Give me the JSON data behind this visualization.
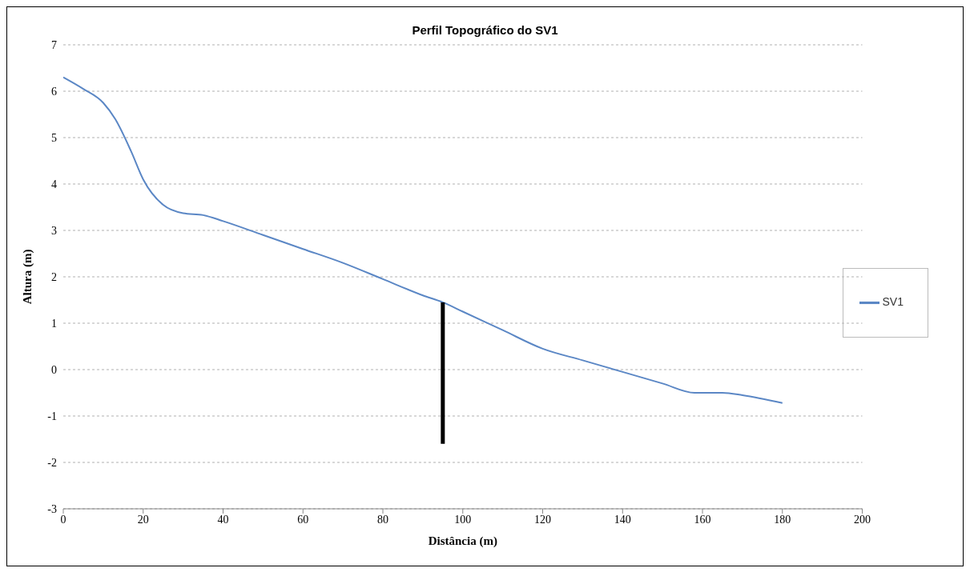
{
  "chart_data": {
    "type": "line",
    "title": "Perfil Topográfico do SV1",
    "xlabel": "Distância (m)",
    "ylabel": "Altura (m)",
    "series": [
      {
        "name": "SV1",
        "color": "#5b87c5",
        "x": [
          0,
          5,
          10,
          13,
          17,
          20,
          25,
          30,
          35,
          40,
          50,
          60,
          70,
          80,
          90,
          95,
          100,
          110,
          120,
          130,
          140,
          150,
          158,
          165,
          170,
          180
        ],
        "values": [
          6.3,
          6.05,
          5.75,
          5.4,
          4.7,
          4.1,
          3.55,
          3.37,
          3.33,
          3.2,
          2.9,
          2.6,
          2.3,
          1.95,
          1.6,
          1.45,
          1.25,
          0.85,
          0.45,
          0.2,
          -0.05,
          -0.3,
          -0.5,
          -0.5,
          -0.55,
          -0.72
        ]
      },
      {
        "color": "#000000",
        "x": [
          95,
          95
        ],
        "values": [
          1.45,
          -1.6
        ]
      }
    ],
    "xlim": [
      0,
      200
    ],
    "xticks": [
      0,
      20,
      40,
      60,
      80,
      100,
      120,
      140,
      160,
      180,
      200
    ],
    "ylim": [
      -3,
      7
    ],
    "yticks": [
      -3,
      -2,
      -1,
      0,
      1,
      2,
      3,
      4,
      5,
      6,
      7
    ],
    "grid": "y",
    "legend": "right",
    "marker": "none",
    "line_style": "solid"
  }
}
